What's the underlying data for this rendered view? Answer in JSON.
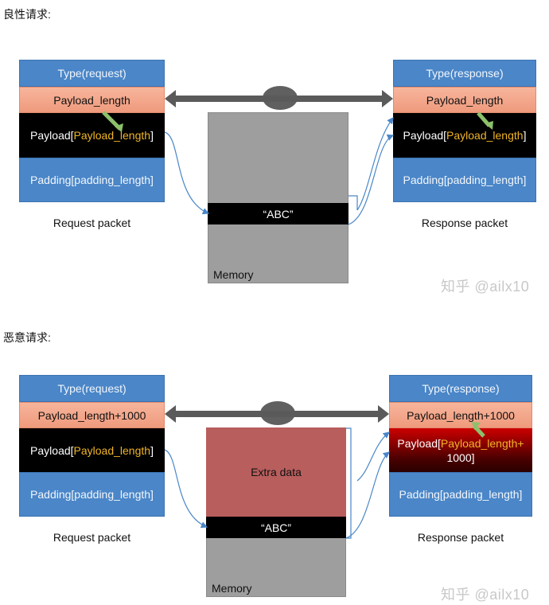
{
  "benign": {
    "heading": "良性请求:",
    "request": {
      "type": "Type(request)",
      "payload_length": "Payload_length",
      "payload_prefix": "Payload[",
      "payload_field": "Payload_length",
      "payload_suffix": "]",
      "padding": "Padding[padding_length]",
      "caption": "Request packet"
    },
    "equals": "=",
    "memory": {
      "abc": "“ABC”",
      "label": "Memory"
    },
    "response": {
      "type": "Type(response)",
      "payload_length": "Payload_length",
      "payload_prefix": "Payload[",
      "payload_field": "Payload_length",
      "payload_suffix": "]",
      "padding": "Padding[padding_length]",
      "caption": "Response packet"
    }
  },
  "malicious": {
    "heading": "恶意请求:",
    "request": {
      "type": "Type(request)",
      "payload_length": "Payload_length+1000",
      "payload_prefix": "Payload[",
      "payload_field": "Payload_length",
      "payload_suffix": "]",
      "padding": "Padding[padding_length]",
      "caption": "Request packet"
    },
    "equals": "=",
    "memory": {
      "extra": "Extra data",
      "abc": "“ABC”",
      "label": "Memory"
    },
    "response": {
      "type": "Type(response)",
      "payload_length": "Payload_length+1000",
      "payload_prefix": "Payload[",
      "payload_field": "Payload_length+",
      "payload_line2": "1000]",
      "padding": "Padding[padding_length]",
      "caption": "Response packet"
    }
  },
  "watermark": "知乎 @ailx10",
  "colors": {
    "blue": "#4a86c8",
    "salmon": "#f4a98c",
    "black": "#000000",
    "memory_gray": "#9e9e9e",
    "extra_red": "#b85e5c",
    "arrow_gray": "#5a5a5a",
    "connector_blue": "#4a86c8",
    "length_arrow_green": "#8cc06b",
    "payload_field_yellow": "#f0b429"
  }
}
